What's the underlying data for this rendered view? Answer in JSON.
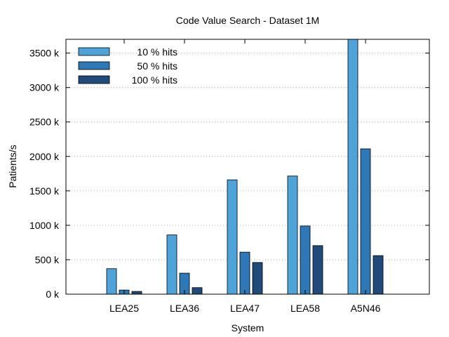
{
  "chart_data": {
    "type": "bar",
    "title": "Code Value Search - Dataset 1M",
    "xlabel": "System",
    "ylabel": "Patients/s",
    "categories": [
      "LEA25",
      "LEA36",
      "LEA47",
      "LEA58",
      "A5N46"
    ],
    "series": [
      {
        "name": "10 % hits",
        "color": "#4ea3d8",
        "values": [
          370,
          860,
          1660,
          1715,
          3700
        ]
      },
      {
        "name": "50 % hits",
        "color": "#2f78b8",
        "values": [
          60,
          305,
          610,
          990,
          2110
        ]
      },
      {
        "name": "100 % hits",
        "color": "#1f4a7a",
        "values": [
          40,
          95,
          460,
          705,
          560
        ]
      }
    ],
    "yticks": [
      0,
      500,
      1000,
      1500,
      2000,
      2500,
      3000,
      3500
    ],
    "ytick_labels": [
      "0 k",
      "500 k",
      "1000 k",
      "1500 k",
      "2000 k",
      "2500 k",
      "3000 k",
      "3500 k"
    ],
    "ylim": [
      0,
      3700
    ],
    "grid": "horizontal dotted",
    "legend_position": "top-left"
  }
}
